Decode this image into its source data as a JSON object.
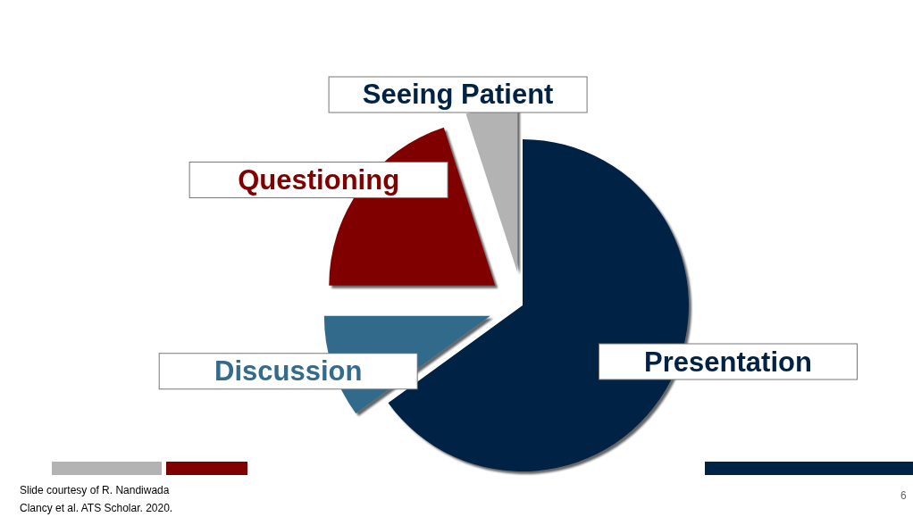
{
  "chart_data": {
    "type": "pie",
    "categories": [
      "Presentation",
      "Discussion",
      "Questioning",
      "Seeing Patient"
    ],
    "values": [
      65,
      10,
      20,
      5
    ],
    "colors": [
      "#002244",
      "#336b8c",
      "#800000",
      "#b3b3b3"
    ],
    "annotations": [
      "Slide courtesy of R. Nandiwada",
      "Clancy et al. ATS Scholar. 2020.",
      "6"
    ]
  }
}
